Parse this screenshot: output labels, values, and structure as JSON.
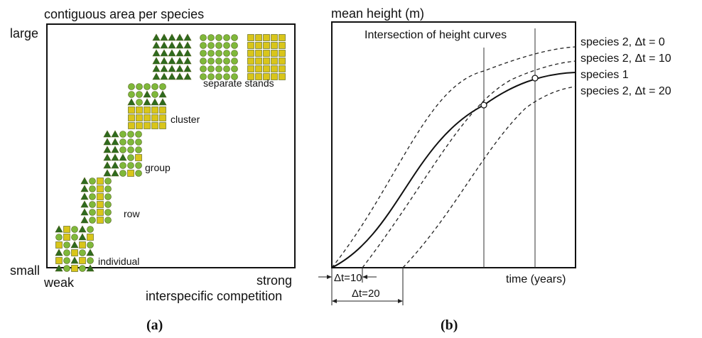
{
  "panel_a": {
    "y_axis_title": "contiguous area per species",
    "y_top_label": "large",
    "y_bottom_label": "small",
    "x_left_label": "weak",
    "x_right_label": "strong",
    "x_axis_title": "interspecific competition",
    "caption": "(a)",
    "patterns": [
      "individual",
      "row",
      "group",
      "cluster",
      "separate stands"
    ],
    "colors": {
      "dark_green": "#2e6b1f",
      "light_green": "#7fb83a",
      "yellow": "#d9c51a",
      "shape_edge": "#4b5a14"
    }
  },
  "panel_b": {
    "y_axis_title": "mean height (m)",
    "x_axis_title": "time (years)",
    "annotation": "Intersection of height curves",
    "legend": [
      "species 2, Δt = 0",
      "species 2, Δt = 10",
      "species 1",
      "species 2, Δt = 20"
    ],
    "dt10_label": "Δt=10",
    "dt20_label": "Δt=20",
    "caption": "(b)"
  }
}
